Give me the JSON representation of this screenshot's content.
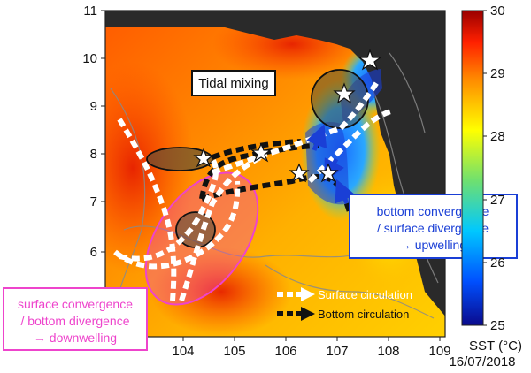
{
  "map": {
    "lon_ticks": [
      "104",
      "105",
      "106",
      "107",
      "108",
      "109"
    ],
    "lat_ticks": [
      "6",
      "7",
      "8",
      "9",
      "10",
      "11"
    ],
    "colorbar": {
      "ticks": [
        "25",
        "26",
        "27",
        "28",
        "29",
        "30"
      ],
      "label": "SST (°C)",
      "date": "16/07/2018",
      "colors": [
        "#0a0a8c",
        "#0050ff",
        "#00c8ff",
        "#6fe06f",
        "#ffff00",
        "#ff8c00",
        "#ff2000",
        "#9a0000"
      ]
    },
    "labels": {
      "tidal": "Tidal mixing",
      "blue_lines": [
        "bottom convergence",
        "/ surface divergence",
        "→ upwelling"
      ],
      "pink_lines": [
        "surface convergence",
        "/ bottom divergence",
        "→ downwelling"
      ]
    },
    "legend": {
      "surface": "Surface circulation",
      "bottom": "Bottom circulation"
    },
    "colors": {
      "upwelling": "#1a3fd6",
      "downwelling": "#ee44cc",
      "land": "#2a2a2a"
    }
  }
}
